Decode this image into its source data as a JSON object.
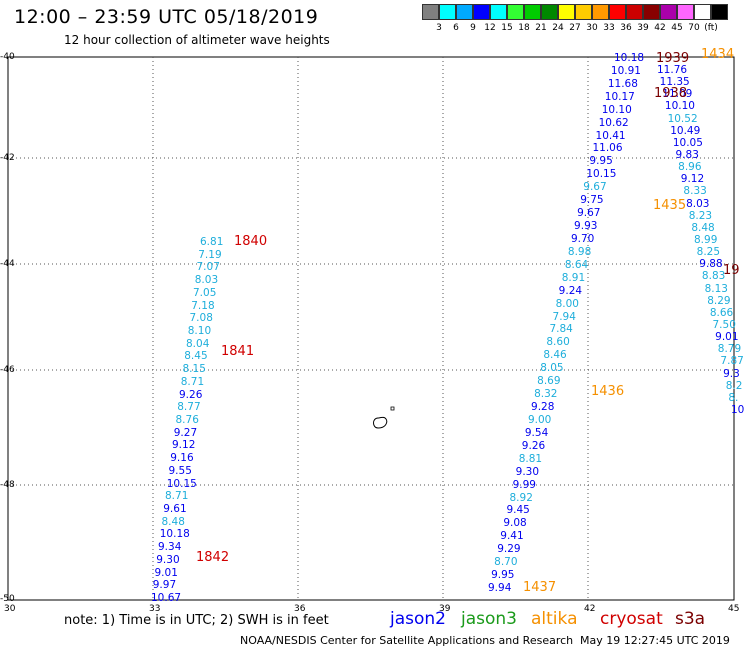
{
  "header": {
    "title": "12:00 – 23:59 UTC 05/18/2019",
    "subtitle": "12 hour collection of altimeter wave heights"
  },
  "colorbar": {
    "colors": [
      "#808080",
      "#00ffff",
      "#00aaff",
      "#0000ff",
      "#00ffff",
      "#33ff33",
      "#00cc00",
      "#008800",
      "#ffff00",
      "#ffcc00",
      "#ff9900",
      "#ff0000",
      "#cc0000",
      "#880000",
      "#aa00aa",
      "#ff66ff",
      "#ffffff",
      "#000000"
    ],
    "labels": [
      "3",
      "6",
      "9",
      "12",
      "15",
      "18",
      "21",
      "24",
      "27",
      "30",
      "33",
      "36",
      "39",
      "42",
      "45",
      "70",
      "(ft)"
    ]
  },
  "axes": {
    "lat_labels": [
      "-40",
      "-42",
      "-44",
      "-46",
      "-48",
      "-50"
    ],
    "lon_labels": [
      "30",
      "33",
      "36",
      "39",
      "42",
      "45"
    ]
  },
  "sat_colors": {
    "jason2": "#0000ee",
    "jason3": "#1a9a1a",
    "altika": "#f59000",
    "cryosat": "#d00000",
    "s3a": "#7a0000",
    "cyan": "#1eaedb"
  },
  "track_a": {
    "values": [
      "6.81",
      "7.19",
      "7.07",
      "8.03",
      "7.05",
      "7.18",
      "7.08",
      "8.10",
      "8.04",
      "8.45",
      "8.15",
      "8.71",
      "9.26",
      "8.77",
      "8.76",
      "9.27",
      "9.12",
      "9.16",
      "9.55",
      "10.15",
      "8.71",
      "9.61",
      "8.48",
      "10.18",
      "9.34",
      "9.30",
      "9.01",
      "9.97",
      "10.67"
    ],
    "times": [
      "1840",
      "1841",
      "1842"
    ]
  },
  "track_b": {
    "values": [
      "9.94",
      "9.95",
      "8.70",
      "9.29",
      "9.41",
      "9.08",
      "9.45",
      "8.92",
      "9.99",
      "9.30",
      "8.81",
      "9.26",
      "9.54",
      "9.00",
      "9.28",
      "8.32",
      "8.69",
      "8.05",
      "8.46",
      "8.60",
      "7.84",
      "7.94",
      "8.00",
      "9.24",
      "8.91",
      "8.64",
      "8.98",
      "9.70",
      "9.93",
      "9.67",
      "9.75",
      "9.67",
      "10.15",
      "9.95",
      "11.06",
      "10.41",
      "10.62",
      "10.10",
      "10.17",
      "11.68",
      "10.91",
      "10.18"
    ],
    "times": [
      "1436",
      "1437"
    ]
  },
  "track_c": {
    "values": [
      "11.76",
      "11.35",
      "11.09",
      "10.10",
      "10.52",
      "10.49",
      "10.05",
      "9.83",
      "8.96",
      "9.12",
      "8.33",
      "8.03",
      "8.23",
      "8.48",
      "8.99",
      "8.25",
      "9.88",
      "8.83",
      "8.13",
      "8.29",
      "8.66",
      "7.50",
      "9.01",
      "8.79",
      "7.87",
      "9.3",
      "8.2",
      "8.",
      "10"
    ],
    "times": [
      "1939",
      "1938",
      "1435",
      "1434",
      "19"
    ]
  },
  "map": {
    "island_label": "°"
  },
  "footer": {
    "note": "note:  1) Time is in UTC;  2) SWH is in feet",
    "legend": [
      "jason2",
      "jason3",
      "altika",
      "cryosat",
      "s3a"
    ],
    "credit": "NOAA/NESDIS Center for Satellite Applications and Research",
    "timestamp": "May 19 12:27:45 UTC 2019"
  }
}
